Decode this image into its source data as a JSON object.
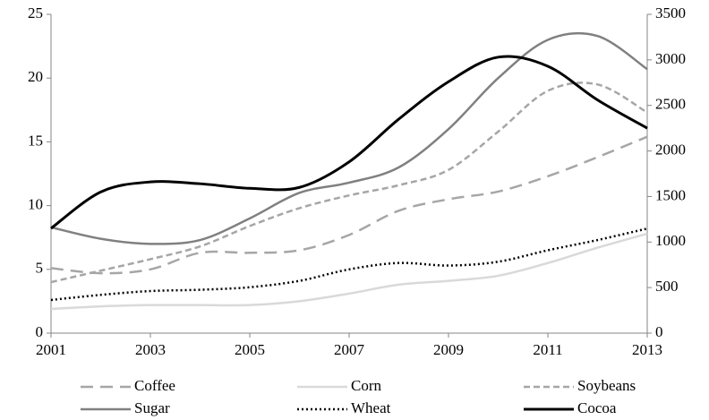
{
  "chart_data": {
    "type": "line",
    "x": [
      2001,
      2002,
      2003,
      2004,
      2005,
      2006,
      2007,
      2008,
      2009,
      2010,
      2011,
      2012,
      2013
    ],
    "xlim": [
      2001,
      2013
    ],
    "xticks": [
      2001,
      2003,
      2005,
      2007,
      2009,
      2011,
      2013
    ],
    "ylim": [
      0,
      25
    ],
    "yticks": [
      0,
      5,
      10,
      15,
      20,
      25
    ],
    "y2lim": [
      0,
      3500
    ],
    "y2ticks": [
      0,
      500,
      1000,
      1500,
      2000,
      2500,
      3000,
      3500
    ],
    "grid": false,
    "legend": "bottom",
    "smooth": true,
    "series": [
      {
        "name": "Coffee",
        "color": "#a6a6a6",
        "dash": "long",
        "values": [
          5.1,
          4.7,
          5.0,
          6.3,
          6.3,
          6.5,
          7.7,
          9.6,
          10.5,
          11.1,
          12.3,
          13.8,
          15.4
        ]
      },
      {
        "name": "Corn",
        "color": "#d9d9d9",
        "dash": "solid",
        "values": [
          1.9,
          2.1,
          2.2,
          2.2,
          2.2,
          2.5,
          3.1,
          3.8,
          4.1,
          4.5,
          5.5,
          6.7,
          7.8
        ]
      },
      {
        "name": "Soybeans",
        "color": "#a6a6a6",
        "dash": "short",
        "values": [
          4.0,
          4.9,
          5.8,
          6.8,
          8.4,
          9.8,
          10.8,
          11.6,
          12.8,
          15.8,
          19.0,
          19.5,
          17.3
        ]
      },
      {
        "name": "Sugar",
        "color": "#808080",
        "dash": "solid",
        "values": [
          8.3,
          7.4,
          7.0,
          7.3,
          9.0,
          11.0,
          11.8,
          13.0,
          16.0,
          20.0,
          23.0,
          23.3,
          20.7
        ]
      },
      {
        "name": "Wheat",
        "color": "#000000",
        "dash": "dotted",
        "values": [
          2.6,
          3.0,
          3.3,
          3.4,
          3.6,
          4.1,
          5.0,
          5.5,
          5.3,
          5.6,
          6.5,
          7.3,
          8.2
        ]
      },
      {
        "name": "Cocoa",
        "color": "#000000",
        "dash": "solid",
        "axis": "y2",
        "values": [
          1150,
          1550,
          1660,
          1640,
          1590,
          1600,
          1880,
          2350,
          2760,
          3030,
          2930,
          2560,
          2250
        ]
      }
    ]
  }
}
